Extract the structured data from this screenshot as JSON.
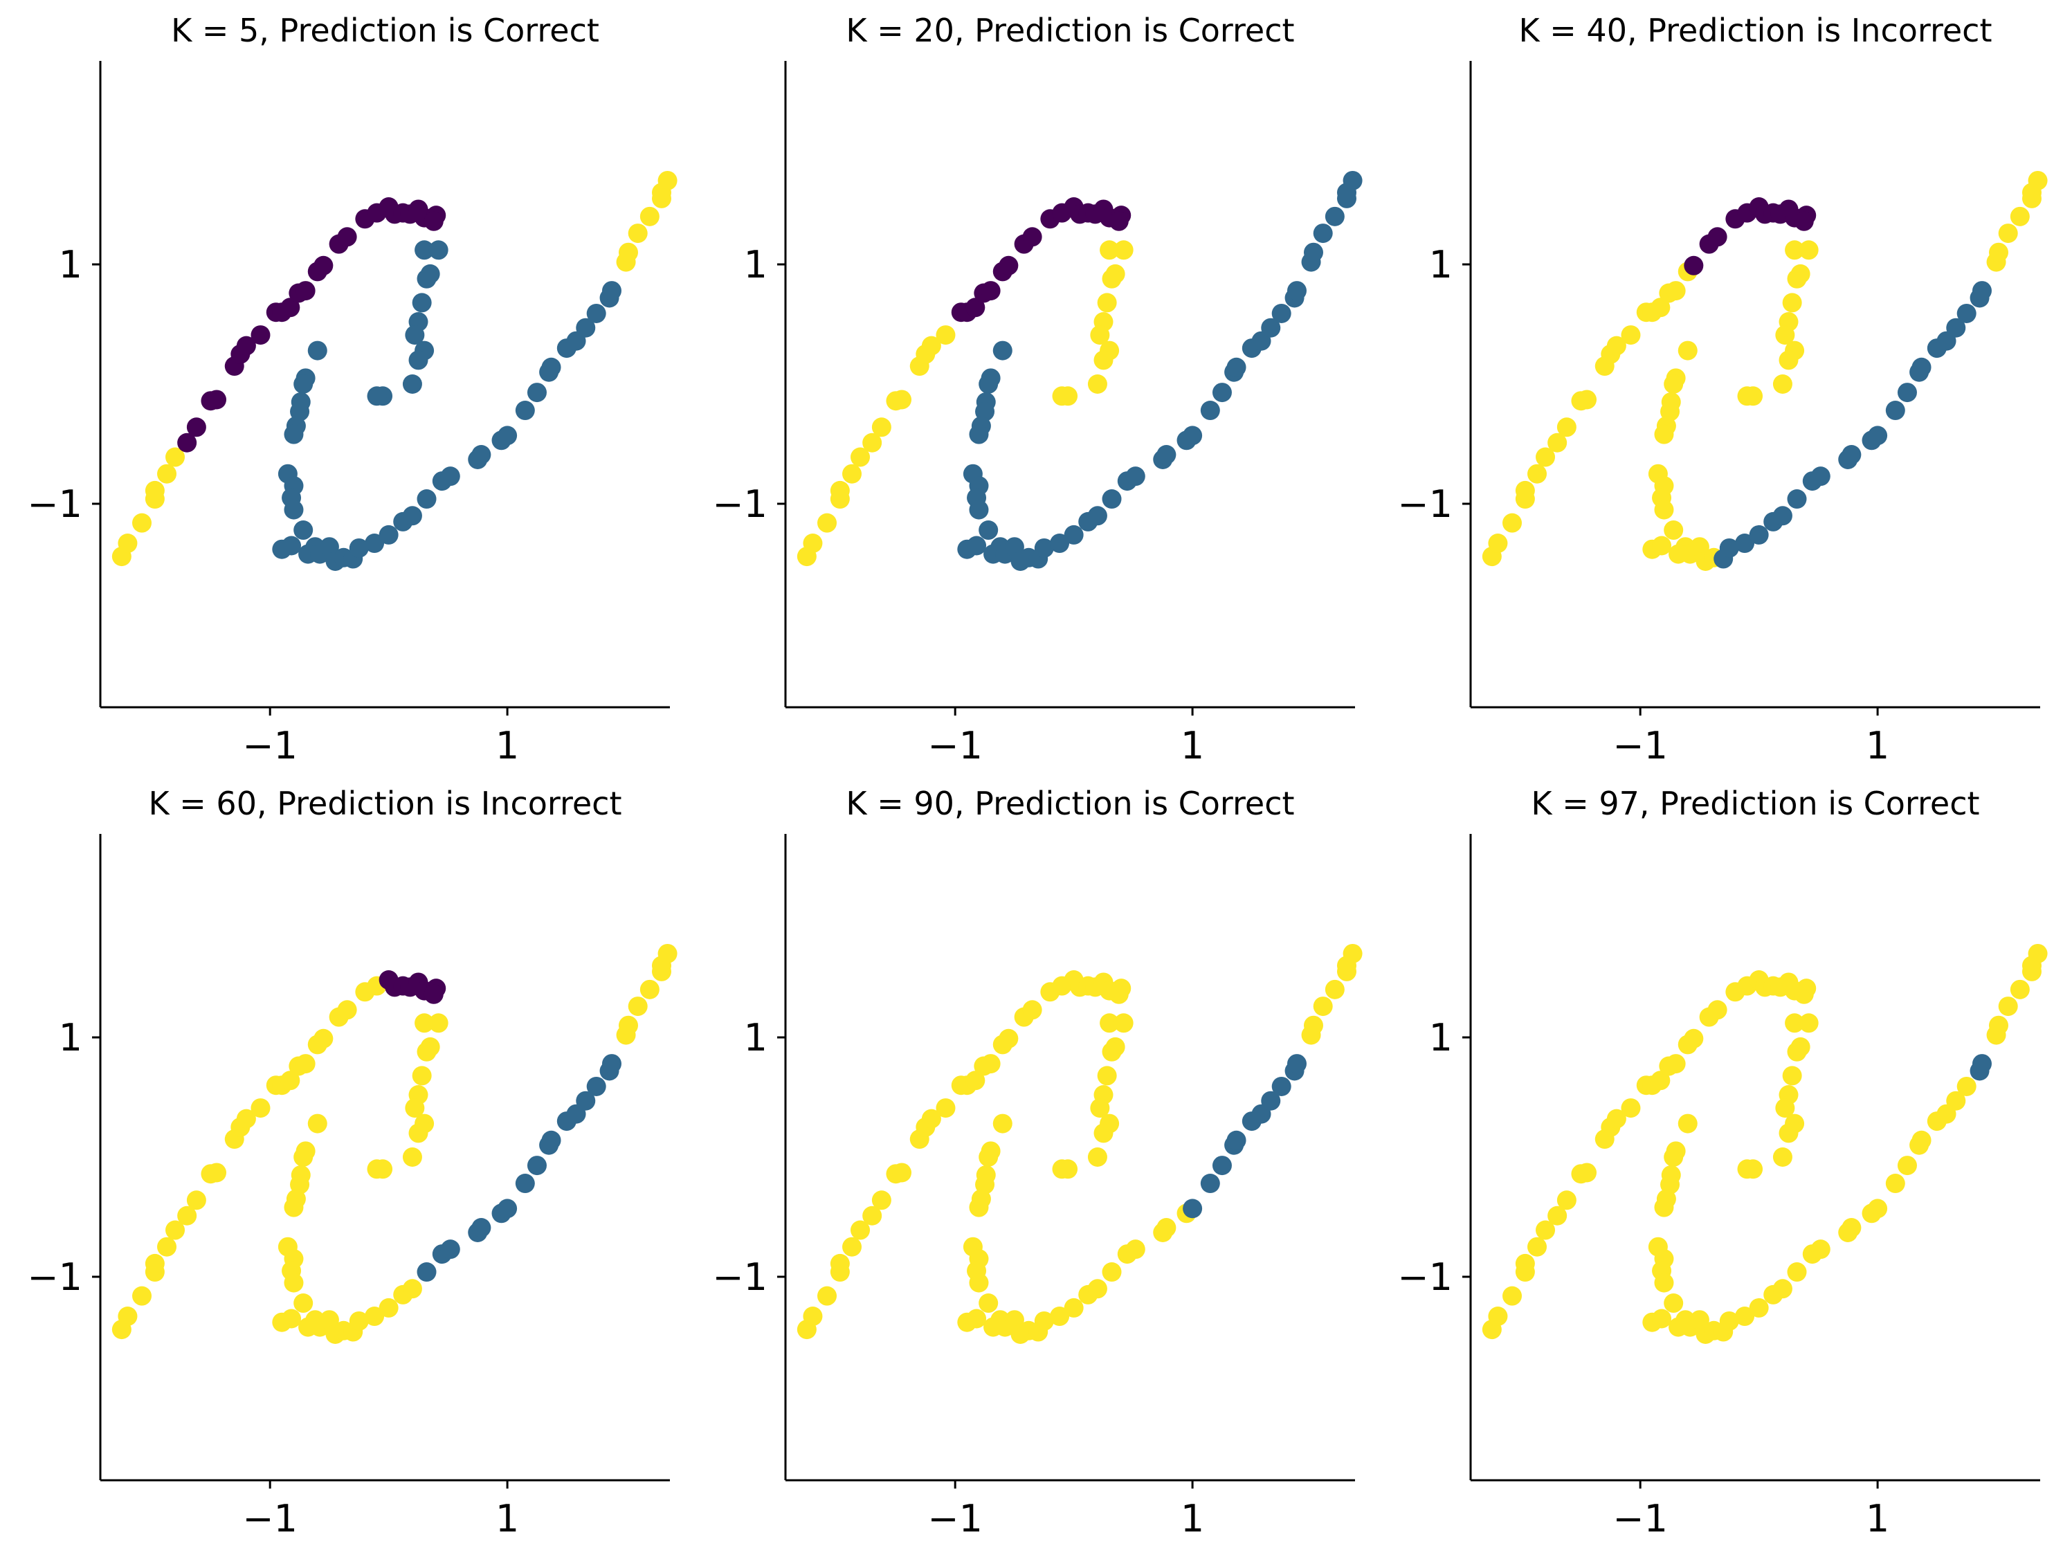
{
  "colors": {
    "purple": "#440154",
    "blue": "#31688e",
    "yellow": "#fde725"
  },
  "axes": {
    "xlim": [
      -2.43,
      2.37
    ],
    "ylim": [
      -2.7,
      2.7
    ],
    "xticks": [
      -1,
      1
    ],
    "yticks": [
      -1,
      1
    ],
    "xtick_labels": [
      "−1",
      "1"
    ],
    "ytick_labels": [
      "−1",
      "1"
    ],
    "grid": false,
    "spines": [
      "left",
      "bottom"
    ]
  },
  "chart_data": [
    {
      "type": "scatter",
      "title": "K = 5, Prediction is Correct",
      "color_rule": {
        "yellow": [
          0,
          6
        ],
        "purple": [
          7,
          33
        ],
        "blue": [
          34,
          88
        ]
      }
    },
    {
      "type": "scatter",
      "title": "K = 20, Prediction is Correct",
      "color_rule": {
        "yellow": [
          0,
          14
        ],
        "purple": [
          15,
          33
        ],
        "blue": [
          34,
          88
        ],
        "yellow_extra": [
          34,
          45
        ],
        "blue_extra": [
          46,
          88
        ]
      }
    },
    {
      "type": "scatter",
      "title": "K = 40, Prediction is Incorrect",
      "color_rule": {
        "yellow": [
          0,
          20
        ],
        "purple": [
          21,
          33
        ],
        "blue": [
          66,
          88
        ]
      }
    },
    {
      "type": "scatter",
      "title": "K = 60, Prediction is Incorrect",
      "color_rule": {
        "yellow": [
          0,
          25
        ],
        "purple": [
          26,
          33
        ],
        "blue": [
          72,
          88
        ]
      }
    },
    {
      "type": "scatter",
      "title": "K = 90, Prediction is Correct",
      "color_rule": {
        "yellow": [
          0,
          33
        ],
        "blue": [
          78,
          88
        ]
      }
    },
    {
      "type": "scatter",
      "title": "K = 97, Prediction is Correct",
      "color_rule": {
        "yellow": [
          0,
          86
        ],
        "blue": [
          87,
          88
        ]
      }
    }
  ],
  "points": {
    "upper_curve": [
      [
        -2.25,
        -1.44
      ],
      [
        -2.2,
        -1.33
      ],
      [
        -2.08,
        -1.16
      ],
      [
        -1.97,
        -0.96
      ],
      [
        -1.97,
        -0.89
      ],
      [
        -1.87,
        -0.75
      ],
      [
        -1.8,
        -0.61
      ],
      [
        -1.7,
        -0.49
      ],
      [
        -1.62,
        -0.36
      ],
      [
        -1.5,
        -0.14
      ],
      [
        -1.45,
        -0.13
      ],
      [
        -1.3,
        0.15
      ],
      [
        -1.25,
        0.25
      ],
      [
        -1.2,
        0.32
      ],
      [
        -1.08,
        0.41
      ],
      [
        -0.95,
        0.6
      ],
      [
        -0.9,
        0.6
      ],
      [
        -0.83,
        0.64
      ],
      [
        -0.76,
        0.76
      ],
      [
        -0.7,
        0.78
      ],
      [
        -0.6,
        0.94
      ],
      [
        -0.55,
        0.99
      ],
      [
        -0.42,
        1.17
      ],
      [
        -0.35,
        1.23
      ],
      [
        -0.2,
        1.38
      ],
      [
        -0.1,
        1.43
      ],
      [
        0,
        1.48
      ],
      [
        0.05,
        1.42
      ],
      [
        0.12,
        1.43
      ],
      [
        0.18,
        1.42
      ],
      [
        0.25,
        1.46
      ],
      [
        0.3,
        1.39
      ],
      [
        0.4,
        1.41
      ]
    ],
    "upper_tail": [
      [
        0.38,
        1.36
      ],
      [
        0.3,
        1.12
      ],
      [
        0.42,
        1.12
      ],
      [
        0.35,
        0.92
      ],
      [
        0.32,
        0.88
      ],
      [
        0.28,
        0.68
      ],
      [
        0.25,
        0.52
      ],
      [
        0.22,
        0.41
      ],
      [
        0.3,
        0.28
      ],
      [
        0.25,
        0.2
      ],
      [
        0.2,
        0.0
      ],
      [
        -0.05,
        -0.1
      ],
      [
        -0.1,
        -0.1
      ]
    ],
    "lower_curve": [
      [
        -0.6,
        0.28
      ],
      [
        -0.7,
        0.05
      ],
      [
        -0.72,
        0.0
      ],
      [
        -0.74,
        -0.15
      ],
      [
        -0.75,
        -0.23
      ],
      [
        -0.78,
        -0.35
      ],
      [
        -0.8,
        -0.42
      ],
      [
        -0.85,
        -0.75
      ],
      [
        -0.8,
        -0.85
      ],
      [
        -0.82,
        -0.95
      ],
      [
        -0.8,
        -1.05
      ],
      [
        -0.72,
        -1.22
      ],
      [
        -0.9,
        -1.38
      ],
      [
        -0.82,
        -1.35
      ],
      [
        -0.62,
        -1.36
      ],
      [
        -0.68,
        -1.42
      ],
      [
        -0.58,
        -1.42
      ],
      [
        -0.5,
        -1.36
      ],
      [
        -0.45,
        -1.48
      ],
      [
        -0.38,
        -1.45
      ],
      [
        -0.3,
        -1.46
      ],
      [
        -0.25,
        -1.37
      ],
      [
        -0.12,
        -1.33
      ],
      [
        -0.0,
        -1.26
      ],
      [
        0.12,
        -1.15
      ],
      [
        0.2,
        -1.1
      ],
      [
        0.32,
        -0.96
      ],
      [
        0.45,
        -0.81
      ],
      [
        0.52,
        -0.77
      ],
      [
        0.75,
        -0.63
      ],
      [
        0.78,
        -0.59
      ],
      [
        0.95,
        -0.47
      ],
      [
        1.0,
        -0.43
      ],
      [
        1.15,
        -0.22
      ],
      [
        1.25,
        -0.07
      ],
      [
        1.35,
        0.1
      ],
      [
        1.37,
        0.14
      ],
      [
        1.5,
        0.3
      ],
      [
        1.58,
        0.36
      ],
      [
        1.66,
        0.47
      ],
      [
        1.75,
        0.59
      ],
      [
        1.86,
        0.72
      ],
      [
        1.88,
        0.78
      ],
      [
        2.0,
        1.02
      ],
      [
        2.02,
        1.1
      ],
      [
        2.1,
        1.26
      ],
      [
        2.2,
        1.4
      ],
      [
        2.3,
        1.55
      ],
      [
        2.3,
        1.6
      ],
      [
        2.35,
        1.7
      ]
    ]
  }
}
